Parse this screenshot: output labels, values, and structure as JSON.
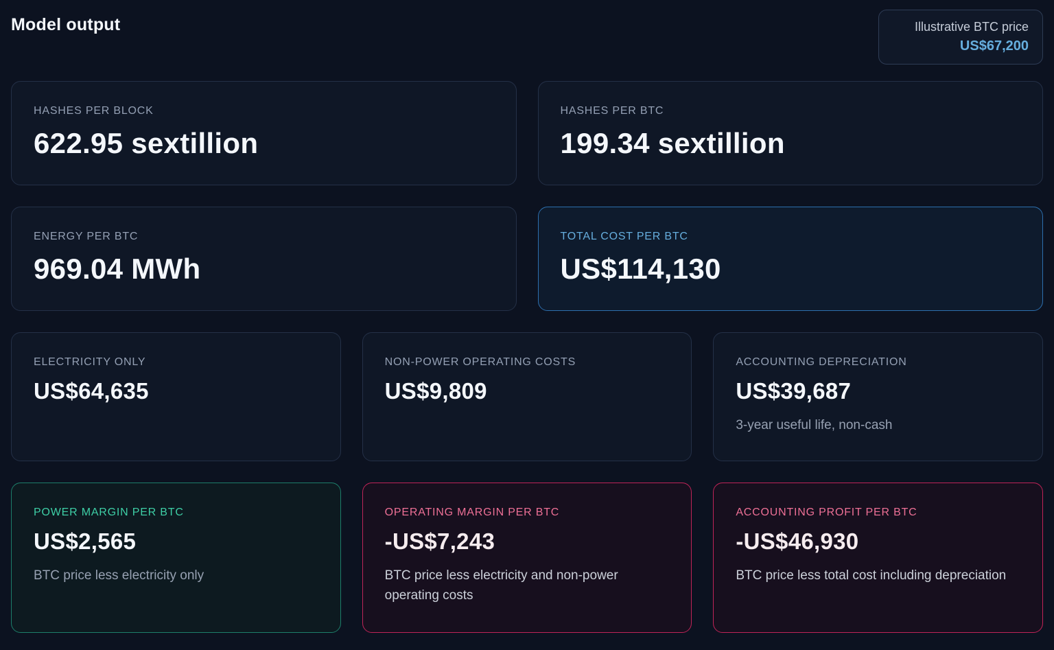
{
  "header": {
    "title": "Model output",
    "price_box": {
      "label": "Illustrative BTC price",
      "value": "US$67,200"
    }
  },
  "cards": [
    {
      "label": "HASHES PER BLOCK",
      "value": "622.95 sextillion",
      "variant": "default"
    },
    {
      "label": "HASHES PER BTC",
      "value": "199.34 sextillion",
      "variant": "default"
    },
    {
      "label": "ENERGY PER BTC",
      "value": "969.04 MWh",
      "variant": "default"
    },
    {
      "label": "TOTAL COST PER BTC",
      "value": "US$114,130",
      "variant": "blue"
    },
    {
      "label": "ELECTRICITY ONLY",
      "value": "US$64,635",
      "variant": "default"
    },
    {
      "label": "NON-POWER OPERATING COSTS",
      "value": "US$9,809",
      "variant": "default"
    },
    {
      "label": "ACCOUNTING DEPRECIATION",
      "value": "US$39,687",
      "note": "3-year useful life, non-cash",
      "variant": "default"
    },
    {
      "label": "POWER MARGIN PER BTC",
      "value": "US$2,565",
      "note": "BTC price less electricity only",
      "variant": "teal"
    },
    {
      "label": "OPERATING MARGIN PER BTC",
      "value": "-US$7,243",
      "note": "BTC price less electricity and non-power operating costs",
      "variant": "pink"
    },
    {
      "label": "ACCOUNTING PROFIT PER BTC",
      "value": "-US$46,930",
      "note": "BTC price less total cost including depreciation",
      "variant": "pink"
    }
  ],
  "colors": {
    "background": "#0c1220",
    "card_background": "#0f1726",
    "card_border": "#243047",
    "accent_blue": "#66aede",
    "border_blue": "#2d6fae",
    "accent_teal": "#3ecfa6",
    "border_teal": "#1d7f6b",
    "accent_pink": "#ee7096",
    "border_pink": "#c02458"
  }
}
